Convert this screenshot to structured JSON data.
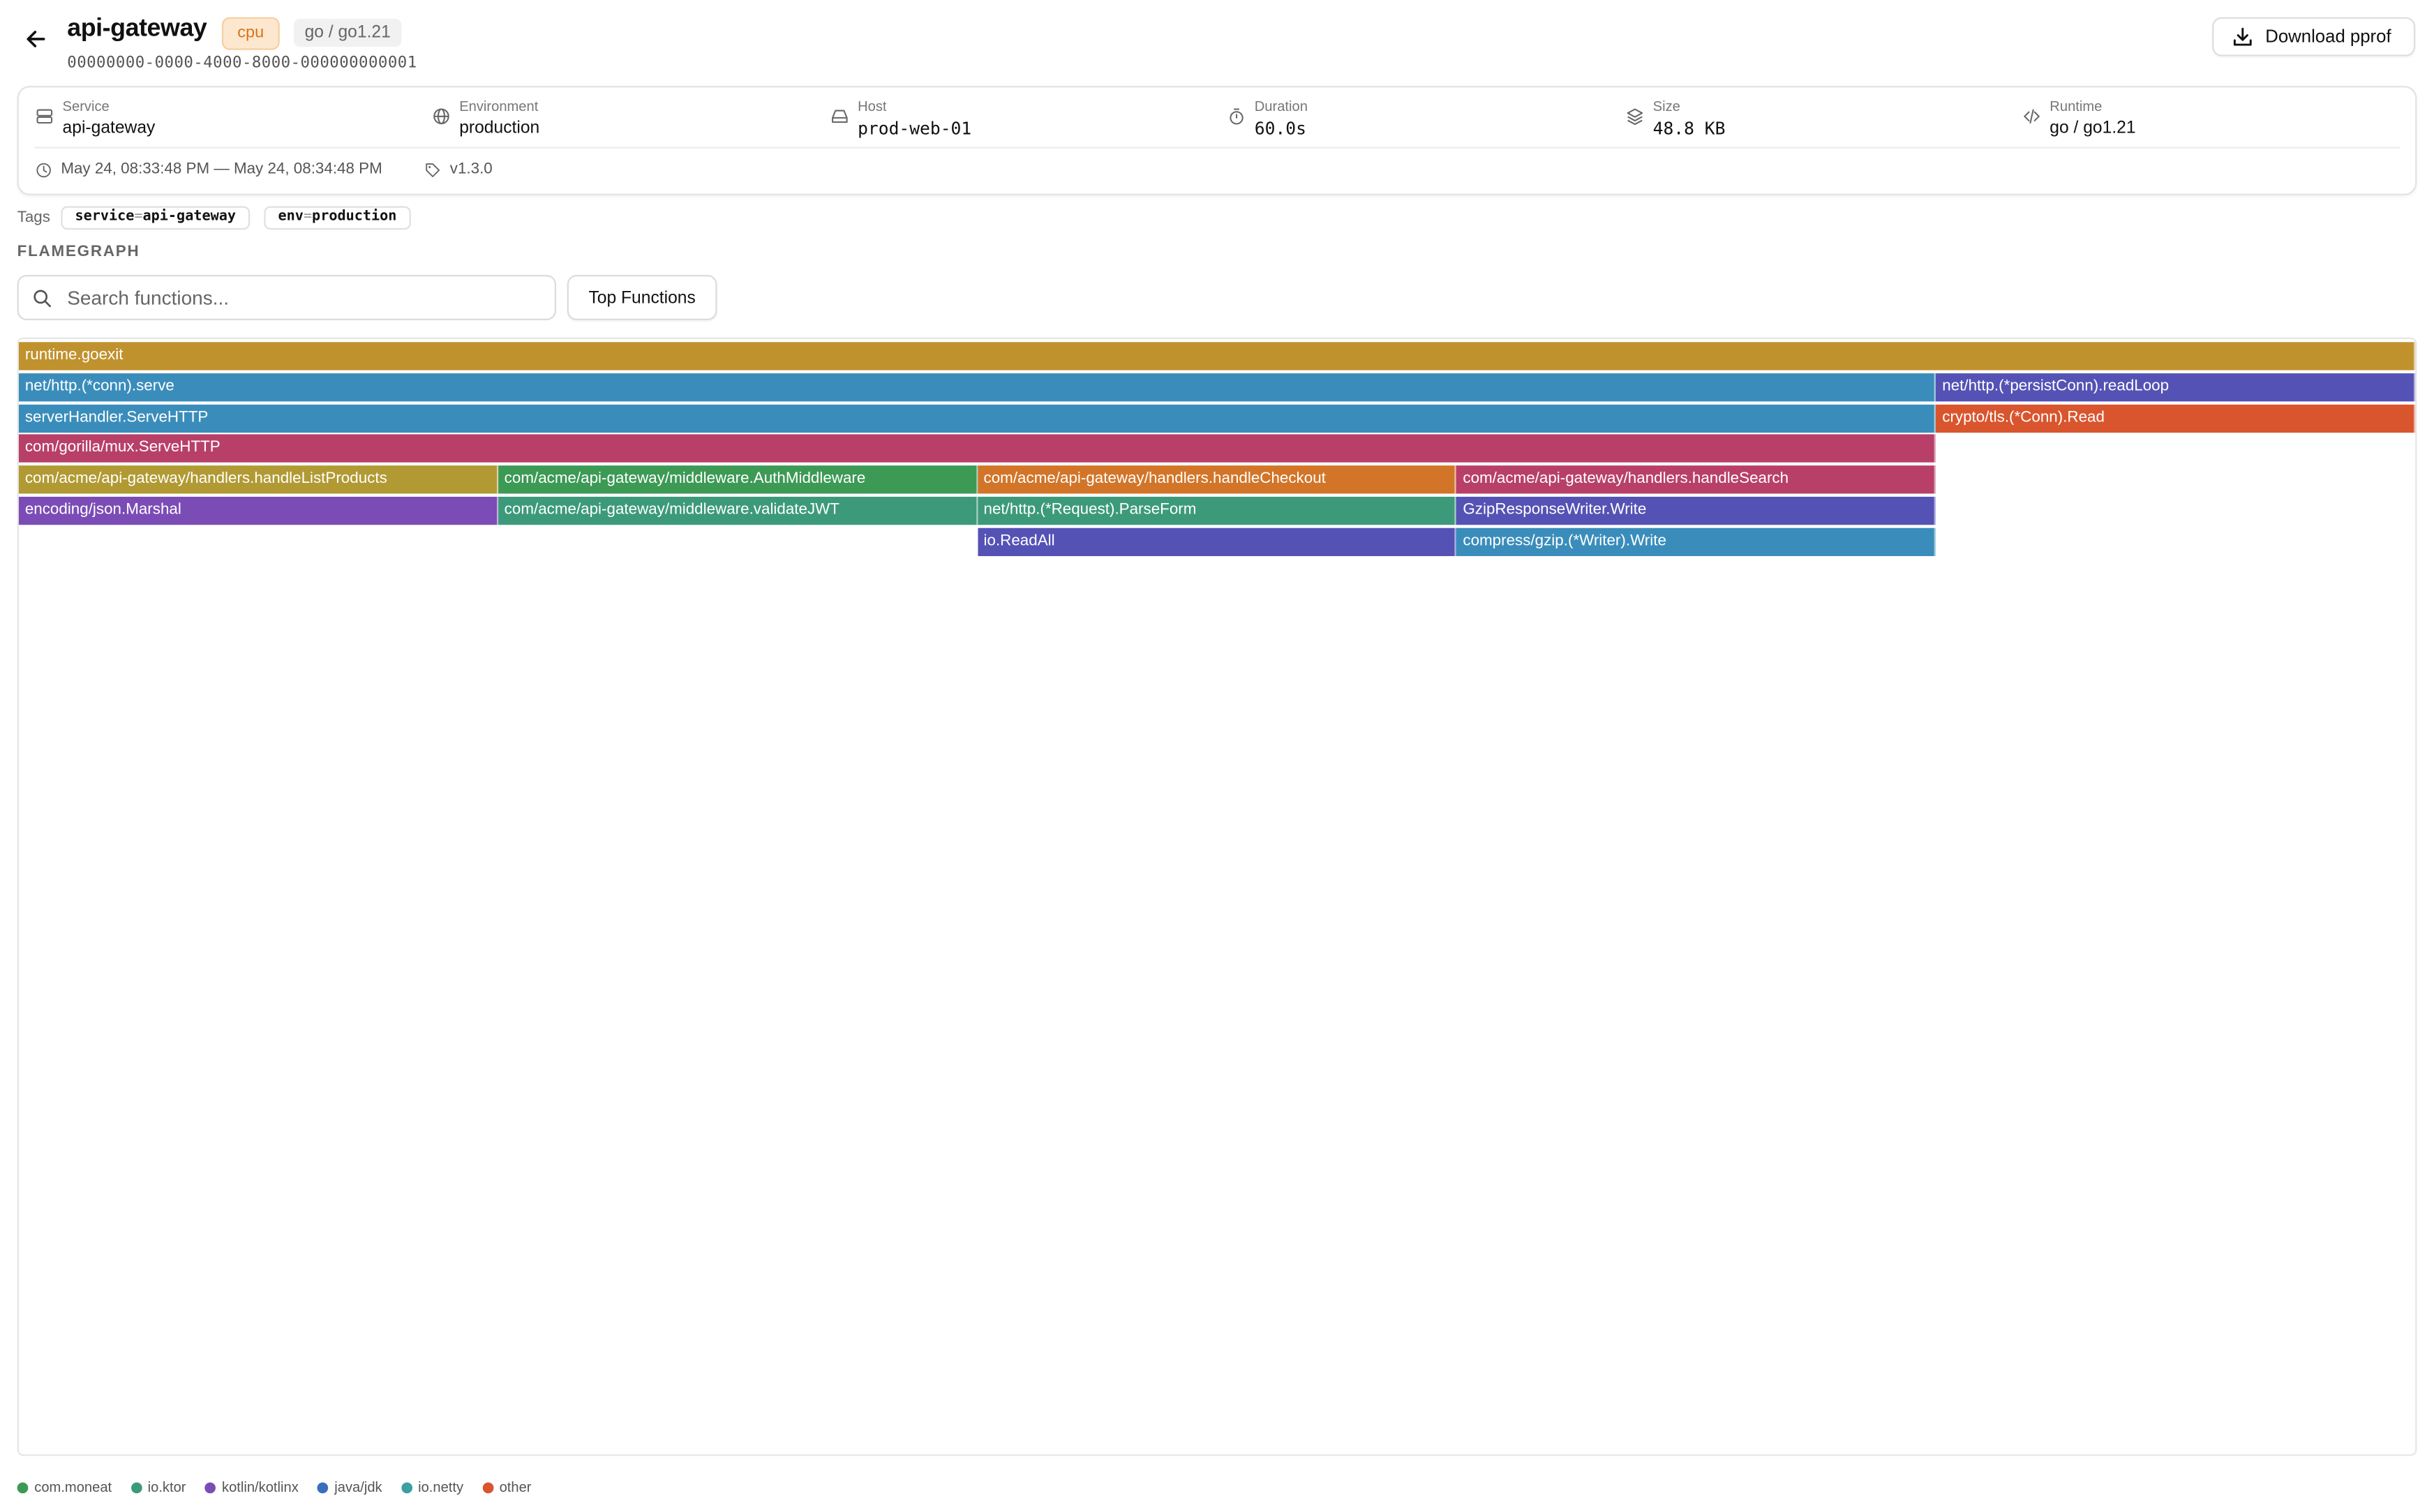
{
  "header": {
    "title": "api-gateway",
    "profile_type": "cpu",
    "runtime_badge": "go / go1.21",
    "profile_id": "00000000-0000-4000-8000-000000000001",
    "download_label": "Download pprof"
  },
  "meta": {
    "service": {
      "label": "Service",
      "value": "api-gateway"
    },
    "environment": {
      "label": "Environment",
      "value": "production"
    },
    "host": {
      "label": "Host",
      "value": "prod-web-01"
    },
    "duration": {
      "label": "Duration",
      "value": "60.0s"
    },
    "size": {
      "label": "Size",
      "value": "48.8 KB"
    },
    "runtime": {
      "label": "Runtime",
      "value": "go / go1.21"
    },
    "time_range": "May 24, 08:33:48 PM — May 24, 08:34:48 PM",
    "version": "v1.3.0"
  },
  "tags": {
    "label": "Tags",
    "items": [
      {
        "key": "service",
        "eq": "=",
        "value": "api-gateway"
      },
      {
        "key": "env",
        "eq": "=",
        "value": "production"
      }
    ]
  },
  "flamegraph": {
    "section_label": "FLAMEGRAPH",
    "search_placeholder": "Search functions...",
    "top_functions_label": "Top Functions",
    "frames": [
      {
        "name": "runtime.goexit",
        "depth": 0,
        "start": 0,
        "width": 1.0,
        "color": "#c0922e"
      },
      {
        "name": "net/http.(*conn).serve",
        "depth": 1,
        "start": 0,
        "width": 0.8,
        "color": "#3a8dbb"
      },
      {
        "name": "net/http.(*persistConn).readLoop",
        "depth": 1,
        "start": 0.8,
        "width": 0.2,
        "color": "#5552b5"
      },
      {
        "name": "serverHandler.ServeHTTP",
        "depth": 2,
        "start": 0,
        "width": 0.8,
        "color": "#3a8dbb"
      },
      {
        "name": "crypto/tls.(*Conn).Read",
        "depth": 2,
        "start": 0.8,
        "width": 0.2,
        "color": "#d9552e"
      },
      {
        "name": "com/gorilla/mux.ServeHTTP",
        "depth": 3,
        "start": 0,
        "width": 0.8,
        "color": "#b84068"
      },
      {
        "name": "com/acme/api-gateway/handlers.handleListProducts",
        "depth": 4,
        "start": 0,
        "width": 0.2,
        "color": "#b19a33"
      },
      {
        "name": "com/acme/api-gateway/middleware.AuthMiddleware",
        "depth": 4,
        "start": 0.2,
        "width": 0.2,
        "color": "#3c9a55"
      },
      {
        "name": "com/acme/api-gateway/handlers.handleCheckout",
        "depth": 4,
        "start": 0.4,
        "width": 0.2,
        "color": "#d27528"
      },
      {
        "name": "com/acme/api-gateway/handlers.handleSearch",
        "depth": 4,
        "start": 0.6,
        "width": 0.2,
        "color": "#b84068"
      },
      {
        "name": "encoding/json.Marshal",
        "depth": 5,
        "start": 0,
        "width": 0.2,
        "color": "#7b4cb6"
      },
      {
        "name": "com/acme/api-gateway/middleware.validateJWT",
        "depth": 5,
        "start": 0.2,
        "width": 0.2,
        "color": "#3c9a7a"
      },
      {
        "name": "net/http.(*Request).ParseForm",
        "depth": 5,
        "start": 0.4,
        "width": 0.2,
        "color": "#3c9a7a"
      },
      {
        "name": "GzipResponseWriter.Write",
        "depth": 5,
        "start": 0.6,
        "width": 0.2,
        "color": "#5552b5"
      },
      {
        "name": "io.ReadAll",
        "depth": 6,
        "start": 0.4,
        "width": 0.2,
        "color": "#5552b5"
      },
      {
        "name": "compress/gzip.(*Writer).Write",
        "depth": 6,
        "start": 0.6,
        "width": 0.2,
        "color": "#3a8dbb"
      }
    ]
  },
  "legend": [
    {
      "label": "com.moneat",
      "color": "#3c9a55"
    },
    {
      "label": "io.ktor",
      "color": "#3c9a7a"
    },
    {
      "label": "kotlin/kotlinx",
      "color": "#7b4cb6"
    },
    {
      "label": "java/jdk",
      "color": "#3a6fbb"
    },
    {
      "label": "io.netty",
      "color": "#3aa0a0"
    },
    {
      "label": "other",
      "color": "#d9552e"
    }
  ]
}
